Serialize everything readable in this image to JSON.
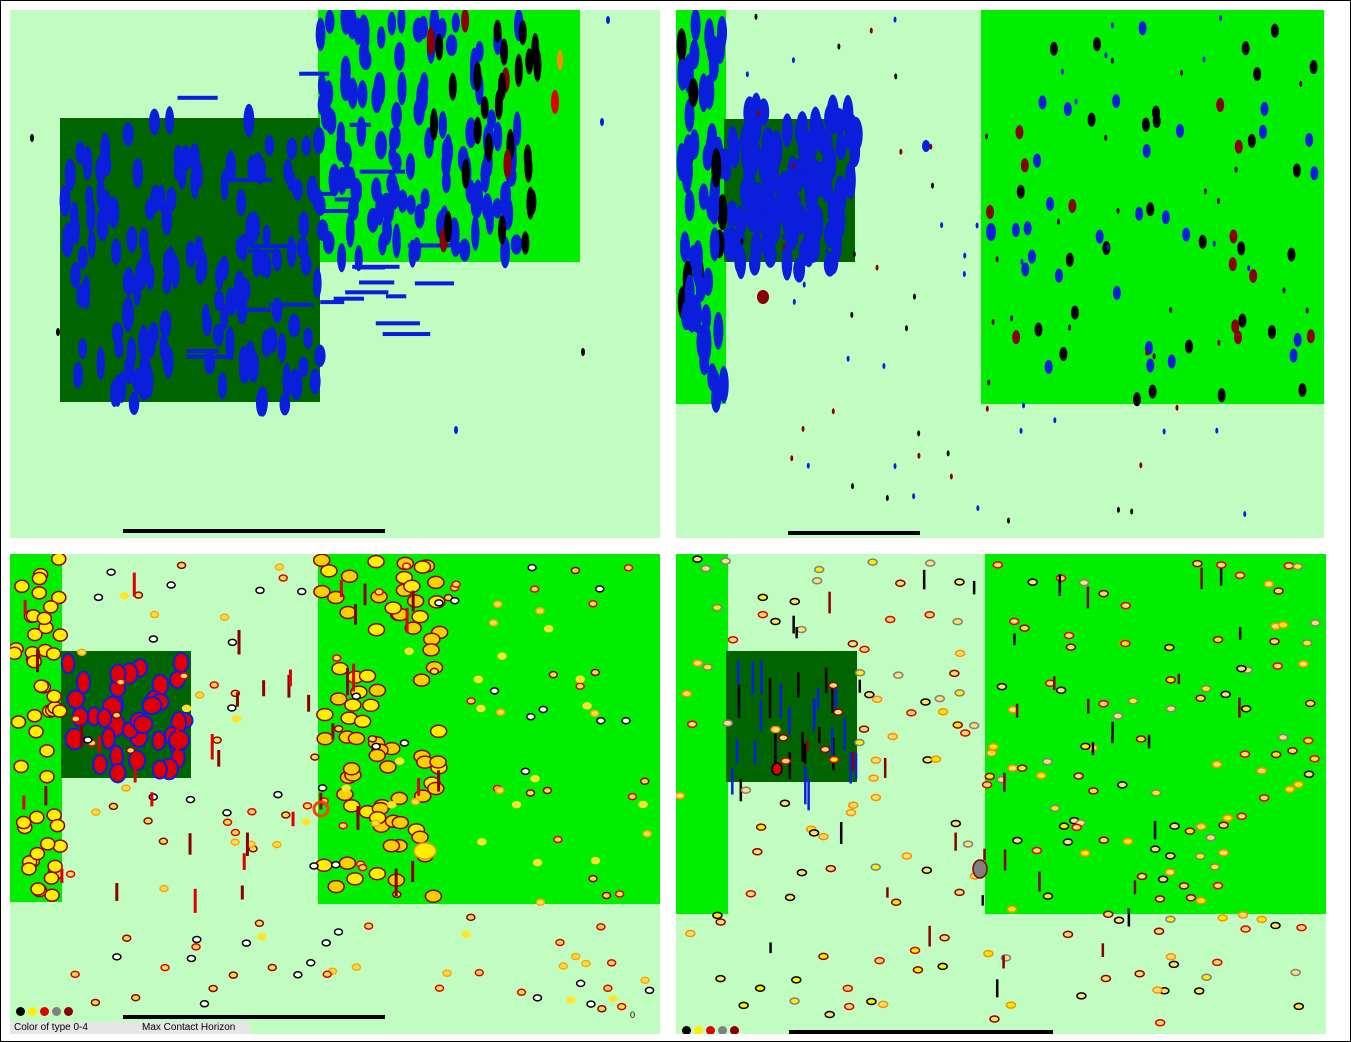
{
  "colors": {
    "background": "#c1fcc1",
    "zone_bright": "#00ee00",
    "zone_dark": "#006400",
    "agent_blue": "#0a1edc",
    "agent_black": "#000000",
    "agent_yellow": "#ffee00",
    "agent_red": "#e00000",
    "agent_grey": "#808080",
    "agent_maroon": "#8b0000",
    "horizon_bar": "#000000"
  },
  "legend": {
    "type_color_label": "Color of type 0-4",
    "horizon_label": "Max Contact Horizon",
    "corner_value": "0",
    "type_colors": [
      "#000000",
      "#ffee00",
      "#e00000",
      "#808080",
      "#8b0000"
    ]
  },
  "panels": [
    {
      "id": "top-left"
    },
    {
      "id": "top-right"
    },
    {
      "id": "bottom-left"
    },
    {
      "id": "bottom-right"
    }
  ]
}
